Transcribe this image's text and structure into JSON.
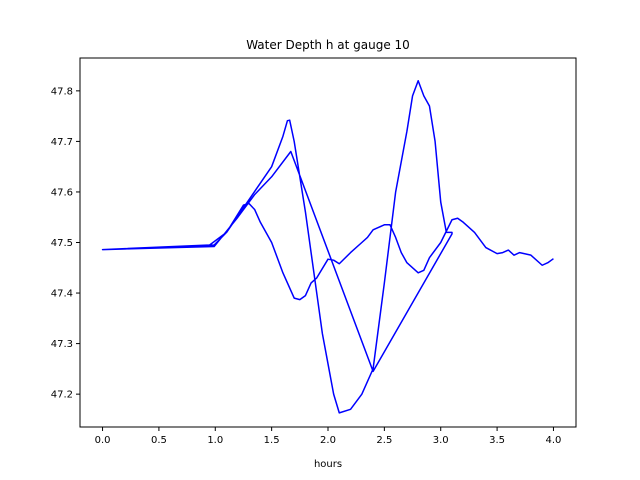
{
  "chart_data": {
    "type": "line",
    "title": "Water Depth h at gauge 10",
    "xlabel": "hours",
    "ylabel": "",
    "xlim": [
      -0.2,
      4.2
    ],
    "ylim": [
      47.135,
      47.865
    ],
    "xticks": [
      0.0,
      0.5,
      1.0,
      1.5,
      2.0,
      2.5,
      3.0,
      3.5,
      4.0
    ],
    "xtick_labels": [
      "0.0",
      "0.5",
      "1.0",
      "1.5",
      "2.0",
      "2.5",
      "3.0",
      "3.5",
      "4.0"
    ],
    "yticks": [
      47.2,
      47.3,
      47.4,
      47.5,
      47.6,
      47.7,
      47.8
    ],
    "ytick_labels": [
      "47.2",
      "47.3",
      "47.4",
      "47.5",
      "47.6",
      "47.7",
      "47.8"
    ],
    "grid": false,
    "colors": {
      "line": "#0000ff",
      "axes": "#000000",
      "background": "#ffffff"
    },
    "series": [
      {
        "x": [
          0.0,
          0.99,
          1.1,
          1.3,
          1.5,
          1.6,
          1.64,
          1.66,
          1.7,
          1.8,
          1.9,
          1.95,
          2.0,
          2.05,
          2.1,
          2.2,
          2.3,
          2.4,
          2.5,
          2.6,
          2.7,
          2.75,
          2.8,
          2.85,
          2.9,
          2.95,
          3.0,
          3.05,
          3.1,
          3.1,
          2.4,
          2.4,
          1.67,
          1.67,
          1.5,
          1.35,
          1.2,
          0.99,
          0.0,
          0.95,
          1.1,
          1.25,
          1.3,
          1.35,
          1.4,
          1.5,
          1.6,
          1.65,
          1.7,
          1.75,
          1.8,
          1.85,
          1.9,
          2.0,
          2.05,
          2.1,
          2.2,
          2.3,
          2.35,
          2.4,
          2.45,
          2.5,
          2.55,
          2.6,
          2.65,
          2.7,
          2.8,
          2.85,
          2.9,
          3.0,
          3.1,
          3.15,
          3.2,
          3.3,
          3.4,
          3.5,
          3.55,
          3.6,
          3.65,
          3.7,
          3.8,
          3.9,
          3.95,
          4.0
        ],
        "y": [
          47.486,
          47.495,
          47.52,
          47.585,
          47.65,
          47.71,
          47.741,
          47.742,
          47.7,
          47.56,
          47.4,
          47.32,
          47.26,
          47.2,
          47.163,
          47.17,
          47.2,
          47.25,
          47.42,
          47.6,
          47.72,
          47.79,
          47.82,
          47.79,
          47.77,
          47.7,
          47.58,
          47.52,
          47.52,
          47.517,
          47.245,
          47.245,
          47.68,
          47.68,
          47.63,
          47.595,
          47.55,
          47.492,
          47.486,
          47.495,
          47.52,
          47.574,
          47.577,
          47.565,
          47.54,
          47.5,
          47.44,
          47.415,
          47.39,
          47.387,
          47.395,
          47.42,
          47.43,
          47.467,
          47.465,
          47.458,
          47.48,
          47.5,
          47.51,
          47.525,
          47.53,
          47.535,
          47.535,
          47.51,
          47.48,
          47.46,
          47.44,
          47.445,
          47.47,
          47.5,
          47.545,
          47.548,
          47.54,
          47.52,
          47.49,
          47.478,
          47.48,
          47.485,
          47.475,
          47.48,
          47.475,
          47.455,
          47.46,
          47.468
        ]
      }
    ]
  }
}
